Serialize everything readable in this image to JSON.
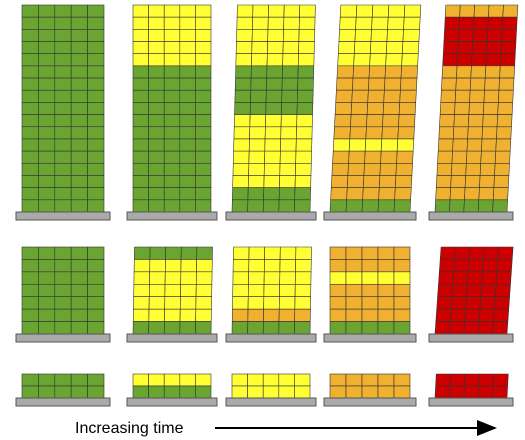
{
  "caption": "Increasing time"
}
